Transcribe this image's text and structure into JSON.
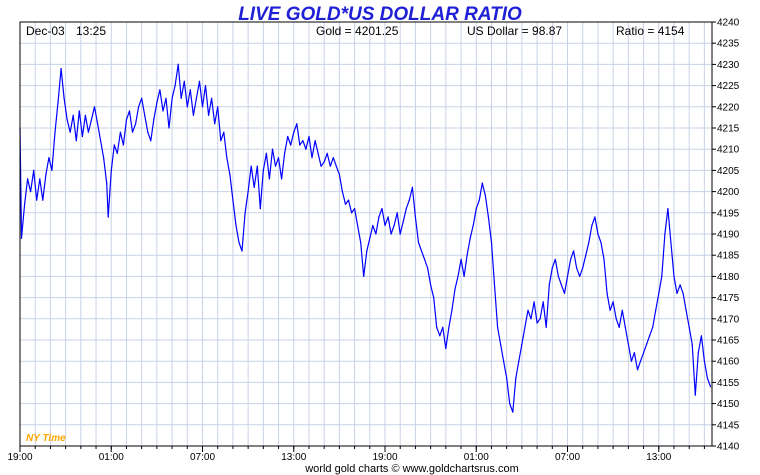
{
  "header": {
    "title": "LIVE GOLD*US DOLLAR RATIO",
    "date": "Dec-03",
    "time": "13:25",
    "gold": "Gold = 4201.25",
    "usd": "US Dollar = 98.87",
    "ratio": "Ratio = 4154"
  },
  "timezone_label": "NY Time",
  "credit": "world gold charts © www.goldchartsrus.com",
  "colors": {
    "title": "#1f1fd6",
    "line": "#0000ff",
    "grid": "#c8d2e6",
    "timezone": "#ffa500"
  },
  "chart_data": {
    "type": "line",
    "title": "LIVE GOLD*US DOLLAR RATIO",
    "xlabel": "NY Time",
    "ylabel": "",
    "grid": true,
    "legend": "none",
    "ylim": [
      4140,
      4240
    ],
    "yticks": [
      4140,
      4145,
      4150,
      4155,
      4160,
      4165,
      4170,
      4175,
      4180,
      4185,
      4190,
      4195,
      4200,
      4205,
      4210,
      4215,
      4220,
      4225,
      4230,
      4235,
      4240
    ],
    "xlim": [
      0,
      45.5
    ],
    "xticks": [
      {
        "x": 0,
        "label": "19:00"
      },
      {
        "x": 6,
        "label": "01:00"
      },
      {
        "x": 12,
        "label": "07:00"
      },
      {
        "x": 18,
        "label": "13:00"
      },
      {
        "x": 24,
        "label": "19:00"
      },
      {
        "x": 30,
        "label": "01:00"
      },
      {
        "x": 36,
        "label": "07:00"
      },
      {
        "x": 42,
        "label": "13:00"
      }
    ],
    "series": [
      {
        "values": [
          [
            0,
            4215
          ],
          [
            0.1,
            4189
          ],
          [
            0.3,
            4197
          ],
          [
            0.5,
            4203
          ],
          [
            0.7,
            4200
          ],
          [
            0.9,
            4205
          ],
          [
            1.1,
            4198
          ],
          [
            1.3,
            4203
          ],
          [
            1.5,
            4198
          ],
          [
            1.7,
            4204
          ],
          [
            1.9,
            4208
          ],
          [
            2.1,
            4205
          ],
          [
            2.3,
            4214
          ],
          [
            2.5,
            4221
          ],
          [
            2.7,
            4229
          ],
          [
            2.9,
            4222
          ],
          [
            3.1,
            4217
          ],
          [
            3.3,
            4214
          ],
          [
            3.5,
            4218
          ],
          [
            3.7,
            4212
          ],
          [
            3.9,
            4219
          ],
          [
            4.1,
            4213
          ],
          [
            4.3,
            4218
          ],
          [
            4.5,
            4214
          ],
          [
            4.7,
            4217
          ],
          [
            4.9,
            4220
          ],
          [
            5.1,
            4216
          ],
          [
            5.3,
            4212
          ],
          [
            5.5,
            4208
          ],
          [
            5.7,
            4202
          ],
          [
            5.8,
            4194
          ],
          [
            6.0,
            4205
          ],
          [
            6.2,
            4211
          ],
          [
            6.4,
            4209
          ],
          [
            6.6,
            4214
          ],
          [
            6.8,
            4211
          ],
          [
            7.0,
            4217
          ],
          [
            7.2,
            4219
          ],
          [
            7.4,
            4214
          ],
          [
            7.6,
            4216
          ],
          [
            7.8,
            4220
          ],
          [
            8.0,
            4222
          ],
          [
            8.2,
            4218
          ],
          [
            8.4,
            4214
          ],
          [
            8.6,
            4212
          ],
          [
            8.8,
            4217
          ],
          [
            9.0,
            4221
          ],
          [
            9.2,
            4224
          ],
          [
            9.4,
            4219
          ],
          [
            9.6,
            4222
          ],
          [
            9.8,
            4215
          ],
          [
            10.0,
            4222
          ],
          [
            10.2,
            4225
          ],
          [
            10.4,
            4230
          ],
          [
            10.6,
            4222
          ],
          [
            10.8,
            4226
          ],
          [
            11.0,
            4220
          ],
          [
            11.2,
            4224
          ],
          [
            11.4,
            4218
          ],
          [
            11.6,
            4222
          ],
          [
            11.8,
            4226
          ],
          [
            12.0,
            4220
          ],
          [
            12.2,
            4225
          ],
          [
            12.4,
            4218
          ],
          [
            12.6,
            4222
          ],
          [
            12.8,
            4216
          ],
          [
            13.0,
            4220
          ],
          [
            13.2,
            4212
          ],
          [
            13.4,
            4214
          ],
          [
            13.6,
            4208
          ],
          [
            13.8,
            4204
          ],
          [
            14.0,
            4198
          ],
          [
            14.2,
            4192
          ],
          [
            14.4,
            4188
          ],
          [
            14.6,
            4186
          ],
          [
            14.8,
            4195
          ],
          [
            15.0,
            4200
          ],
          [
            15.2,
            4206
          ],
          [
            15.4,
            4201
          ],
          [
            15.6,
            4206
          ],
          [
            15.8,
            4196
          ],
          [
            16.0,
            4205
          ],
          [
            16.2,
            4209
          ],
          [
            16.4,
            4203
          ],
          [
            16.6,
            4210
          ],
          [
            16.8,
            4206
          ],
          [
            17.0,
            4208
          ],
          [
            17.2,
            4203
          ],
          [
            17.4,
            4209
          ],
          [
            17.6,
            4213
          ],
          [
            17.8,
            4211
          ],
          [
            18.0,
            4214
          ],
          [
            18.2,
            4216
          ],
          [
            18.4,
            4211
          ],
          [
            18.6,
            4212
          ],
          [
            18.8,
            4210
          ],
          [
            19.0,
            4213
          ],
          [
            19.2,
            4208
          ],
          [
            19.4,
            4212
          ],
          [
            19.6,
            4209
          ],
          [
            19.8,
            4206
          ],
          [
            20.0,
            4207
          ],
          [
            20.2,
            4209
          ],
          [
            20.4,
            4206
          ],
          [
            20.6,
            4208
          ],
          [
            20.8,
            4206
          ],
          [
            21.0,
            4204
          ],
          [
            21.2,
            4200
          ],
          [
            21.4,
            4197
          ],
          [
            21.6,
            4198
          ],
          [
            21.8,
            4195
          ],
          [
            22.0,
            4196
          ],
          [
            22.2,
            4192
          ],
          [
            22.4,
            4188
          ],
          [
            22.6,
            4180
          ],
          [
            22.8,
            4186
          ],
          [
            23.0,
            4189
          ],
          [
            23.2,
            4192
          ],
          [
            23.4,
            4190
          ],
          [
            23.6,
            4194
          ],
          [
            23.8,
            4196
          ],
          [
            24.0,
            4192
          ],
          [
            24.2,
            4194
          ],
          [
            24.4,
            4190
          ],
          [
            24.6,
            4192
          ],
          [
            24.8,
            4195
          ],
          [
            25.0,
            4190
          ],
          [
            25.2,
            4193
          ],
          [
            25.4,
            4196
          ],
          [
            25.6,
            4198
          ],
          [
            25.8,
            4201
          ],
          [
            26.0,
            4194
          ],
          [
            26.2,
            4188
          ],
          [
            26.4,
            4186
          ],
          [
            26.6,
            4184
          ],
          [
            26.8,
            4182
          ],
          [
            27.0,
            4178
          ],
          [
            27.2,
            4175
          ],
          [
            27.4,
            4168
          ],
          [
            27.6,
            4166
          ],
          [
            27.8,
            4168
          ],
          [
            28.0,
            4163
          ],
          [
            28.2,
            4168
          ],
          [
            28.4,
            4172
          ],
          [
            28.6,
            4177
          ],
          [
            28.8,
            4180
          ],
          [
            29.0,
            4184
          ],
          [
            29.2,
            4180
          ],
          [
            29.4,
            4185
          ],
          [
            29.6,
            4189
          ],
          [
            29.8,
            4192
          ],
          [
            30.0,
            4196
          ],
          [
            30.2,
            4198
          ],
          [
            30.4,
            4202
          ],
          [
            30.6,
            4199
          ],
          [
            30.8,
            4194
          ],
          [
            31.0,
            4188
          ],
          [
            31.2,
            4178
          ],
          [
            31.4,
            4168
          ],
          [
            31.6,
            4164
          ],
          [
            31.8,
            4160
          ],
          [
            32.0,
            4156
          ],
          [
            32.2,
            4150
          ],
          [
            32.4,
            4148
          ],
          [
            32.6,
            4156
          ],
          [
            32.8,
            4160
          ],
          [
            33.0,
            4164
          ],
          [
            33.2,
            4168
          ],
          [
            33.4,
            4172
          ],
          [
            33.6,
            4170
          ],
          [
            33.8,
            4174
          ],
          [
            34.0,
            4169
          ],
          [
            34.2,
            4170
          ],
          [
            34.4,
            4174
          ],
          [
            34.6,
            4168
          ],
          [
            34.8,
            4178
          ],
          [
            35.0,
            4182
          ],
          [
            35.2,
            4184
          ],
          [
            35.4,
            4180
          ],
          [
            35.6,
            4178
          ],
          [
            35.8,
            4176
          ],
          [
            36.0,
            4180
          ],
          [
            36.2,
            4184
          ],
          [
            36.4,
            4186
          ],
          [
            36.6,
            4182
          ],
          [
            36.8,
            4180
          ],
          [
            37.0,
            4182
          ],
          [
            37.2,
            4185
          ],
          [
            37.4,
            4188
          ],
          [
            37.6,
            4192
          ],
          [
            37.8,
            4194
          ],
          [
            38.0,
            4190
          ],
          [
            38.2,
            4188
          ],
          [
            38.4,
            4184
          ],
          [
            38.6,
            4176
          ],
          [
            38.8,
            4172
          ],
          [
            39.0,
            4174
          ],
          [
            39.2,
            4170
          ],
          [
            39.4,
            4168
          ],
          [
            39.6,
            4172
          ],
          [
            39.8,
            4168
          ],
          [
            40.0,
            4164
          ],
          [
            40.2,
            4160
          ],
          [
            40.4,
            4162
          ],
          [
            40.6,
            4158
          ],
          [
            40.8,
            4160
          ],
          [
            41.0,
            4162
          ],
          [
            41.2,
            4164
          ],
          [
            41.4,
            4166
          ],
          [
            41.6,
            4168
          ],
          [
            41.8,
            4172
          ],
          [
            42.0,
            4176
          ],
          [
            42.2,
            4180
          ],
          [
            42.4,
            4190
          ],
          [
            42.6,
            4196
          ],
          [
            42.8,
            4188
          ],
          [
            43.0,
            4180
          ],
          [
            43.2,
            4176
          ],
          [
            43.4,
            4178
          ],
          [
            43.6,
            4176
          ],
          [
            43.8,
            4172
          ],
          [
            44.0,
            4168
          ],
          [
            44.2,
            4164
          ],
          [
            44.4,
            4152
          ],
          [
            44.6,
            4162
          ],
          [
            44.8,
            4166
          ],
          [
            45.0,
            4160
          ],
          [
            45.2,
            4156
          ],
          [
            45.4,
            4154
          ]
        ]
      }
    ]
  }
}
